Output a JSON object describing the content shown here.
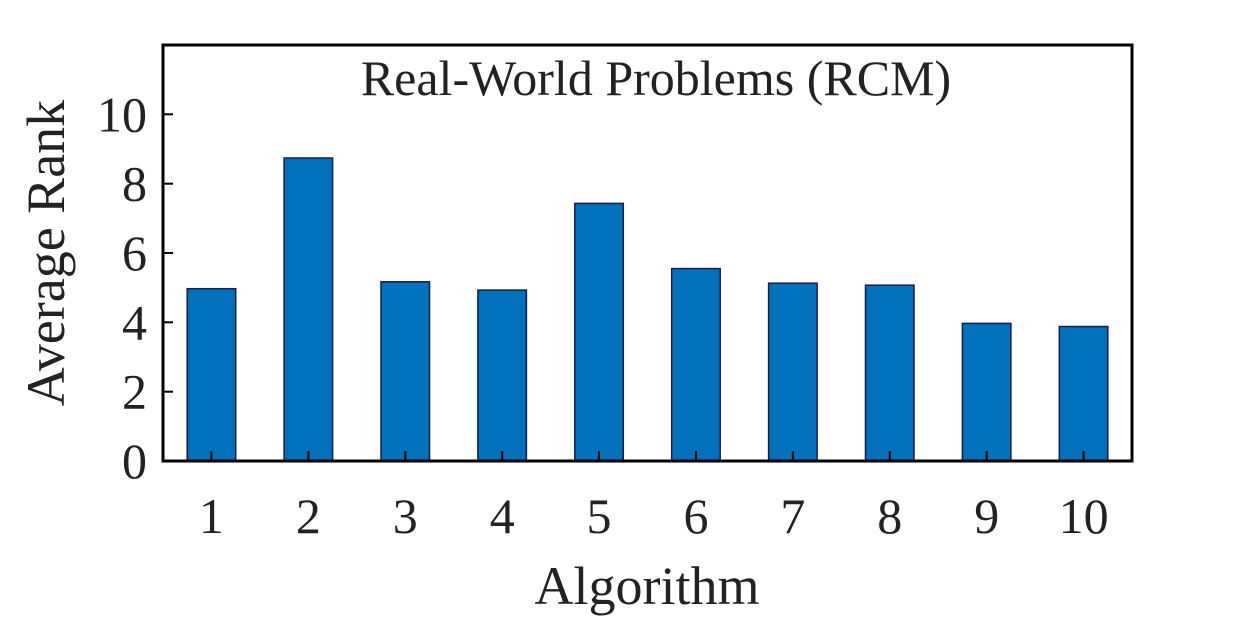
{
  "chart_data": {
    "type": "bar",
    "title": "Real-World Problems (RCM)",
    "xlabel": "Algorithm",
    "ylabel": "Average Rank",
    "categories": [
      "1",
      "2",
      "3",
      "4",
      "5",
      "6",
      "7",
      "8",
      "9",
      "10"
    ],
    "values": [
      4.97,
      8.74,
      5.17,
      4.93,
      7.43,
      5.55,
      5.13,
      5.07,
      3.97,
      3.88
    ],
    "ylim": [
      0,
      12
    ],
    "yticks": [
      0,
      2,
      4,
      6,
      8,
      10
    ],
    "grid": false,
    "legend": "none",
    "bar_color": "#0072BD",
    "bar_edge_color": "#1a1a4a"
  }
}
